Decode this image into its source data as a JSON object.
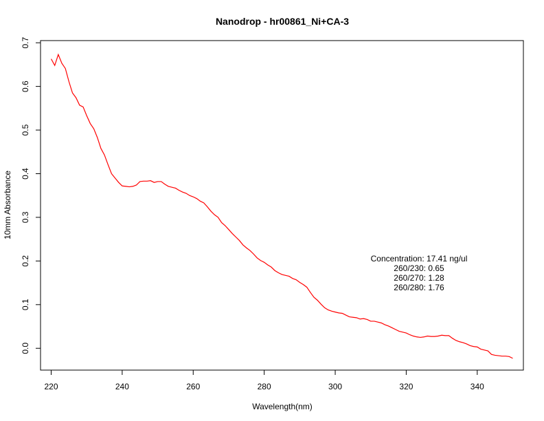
{
  "chart_data": {
    "type": "line",
    "title": "Nanodrop - hr00861_Ni+CA-3",
    "xlabel": "Wavelength(nm)",
    "ylabel": "10mm Absorbance",
    "xlim": [
      217,
      353
    ],
    "ylim": [
      -0.05,
      0.705
    ],
    "x_ticks": [
      220,
      240,
      260,
      280,
      300,
      320,
      340
    ],
    "y_ticks": [
      0.0,
      0.1,
      0.2,
      0.3,
      0.4,
      0.5,
      0.6,
      0.7
    ],
    "grid": false,
    "legend": "none",
    "series": [
      {
        "color": "#ff0000",
        "x": [
          220,
          221,
          222,
          223,
          224,
          225,
          226,
          227,
          228,
          229,
          230,
          231,
          232,
          233,
          234,
          235,
          236,
          237,
          238,
          239,
          240,
          241,
          242,
          243,
          244,
          245,
          246,
          247,
          248,
          249,
          250,
          251,
          252,
          253,
          254,
          255,
          256,
          257,
          258,
          259,
          260,
          261,
          262,
          263,
          264,
          265,
          266,
          267,
          268,
          269,
          270,
          271,
          272,
          273,
          274,
          275,
          276,
          277,
          278,
          279,
          280,
          281,
          282,
          283,
          284,
          285,
          286,
          287,
          288,
          289,
          290,
          291,
          292,
          293,
          294,
          295,
          296,
          297,
          298,
          299,
          300,
          301,
          302,
          303,
          304,
          305,
          306,
          307,
          308,
          309,
          310,
          311,
          312,
          313,
          314,
          315,
          316,
          317,
          318,
          319,
          320,
          321,
          322,
          323,
          324,
          325,
          326,
          327,
          328,
          329,
          330,
          331,
          332,
          333,
          334,
          335,
          336,
          337,
          338,
          339,
          340,
          341,
          342,
          343,
          344,
          345,
          346,
          347,
          348,
          349,
          350
        ],
        "values": [
          0.663,
          0.648,
          0.673,
          0.653,
          0.641,
          0.611,
          0.585,
          0.574,
          0.557,
          0.553,
          0.533,
          0.515,
          0.503,
          0.483,
          0.458,
          0.443,
          0.421,
          0.4,
          0.39,
          0.38,
          0.372,
          0.371,
          0.37,
          0.371,
          0.374,
          0.382,
          0.383,
          0.383,
          0.384,
          0.38,
          0.382,
          0.382,
          0.376,
          0.371,
          0.369,
          0.367,
          0.362,
          0.358,
          0.355,
          0.35,
          0.347,
          0.343,
          0.337,
          0.333,
          0.324,
          0.314,
          0.306,
          0.3,
          0.288,
          0.281,
          0.272,
          0.263,
          0.255,
          0.247,
          0.237,
          0.23,
          0.224,
          0.216,
          0.207,
          0.201,
          0.197,
          0.191,
          0.186,
          0.178,
          0.173,
          0.169,
          0.167,
          0.165,
          0.16,
          0.157,
          0.151,
          0.146,
          0.14,
          0.128,
          0.117,
          0.11,
          0.101,
          0.093,
          0.088,
          0.085,
          0.083,
          0.081,
          0.08,
          0.076,
          0.072,
          0.071,
          0.07,
          0.067,
          0.068,
          0.066,
          0.062,
          0.062,
          0.06,
          0.058,
          0.054,
          0.051,
          0.047,
          0.043,
          0.039,
          0.037,
          0.035,
          0.031,
          0.028,
          0.026,
          0.025,
          0.026,
          0.028,
          0.027,
          0.027,
          0.028,
          0.03,
          0.029,
          0.029,
          0.023,
          0.018,
          0.015,
          0.013,
          0.01,
          0.006,
          0.004,
          0.003,
          -0.002,
          -0.004,
          -0.006,
          -0.014,
          -0.016,
          -0.017,
          -0.018,
          -0.018,
          -0.019,
          -0.023
        ]
      }
    ],
    "annotations": [
      "Concentration: 17.41 ng/ul",
      "260/230: 0.65",
      "260/270: 1.28",
      "260/280: 1.76"
    ]
  }
}
